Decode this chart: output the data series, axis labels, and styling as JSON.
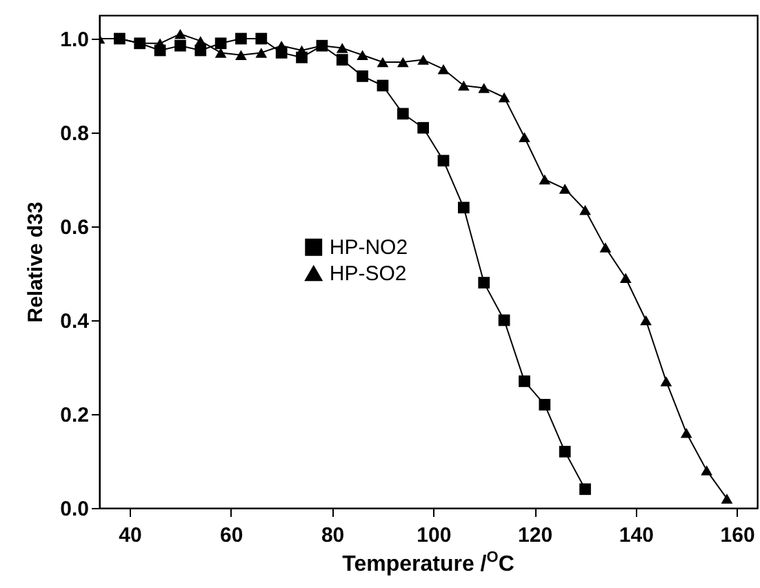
{
  "chart_data": {
    "type": "line",
    "xlabel": "Temperature /$^{O}$C",
    "ylabel": "Relative d33",
    "xlim": [
      34,
      164
    ],
    "xticks": [
      40,
      60,
      80,
      100,
      120,
      140,
      160
    ],
    "ylim": [
      0,
      1.05
    ],
    "yticks": [
      {
        "value": 0,
        "label": "0.0"
      },
      0.2,
      0.4,
      0.6,
      0.8,
      {
        "value": 1,
        "label": "1.0"
      }
    ],
    "legend": "center",
    "grid": false,
    "line_style": "solid",
    "series": [
      {
        "name": "HP-NO2",
        "color": "#000000",
        "marker": "square",
        "x": [
          38,
          42,
          46,
          50,
          54,
          58,
          62,
          66,
          70,
          74,
          78,
          82,
          86,
          90,
          94,
          98,
          102,
          106,
          110,
          114,
          118,
          122,
          126,
          130
        ],
        "values": [
          1.0,
          0.99,
          0.975,
          0.985,
          0.975,
          0.99,
          1.0,
          1.0,
          0.97,
          0.96,
          0.985,
          0.955,
          0.92,
          0.9,
          0.84,
          0.81,
          0.74,
          0.64,
          0.48,
          0.4,
          0.27,
          0.22,
          0.12,
          0.04
        ]
      },
      {
        "name": "HP-SO2",
        "color": "#000000",
        "marker": "triangle",
        "x": [
          34,
          38,
          42,
          46,
          50,
          54,
          58,
          62,
          66,
          70,
          74,
          78,
          82,
          86,
          90,
          94,
          98,
          102,
          106,
          110,
          114,
          118,
          122,
          126,
          130,
          134,
          138,
          142,
          146,
          150,
          154,
          158
        ],
        "values": [
          1.0,
          1.0,
          0.99,
          0.99,
          1.01,
          0.995,
          0.97,
          0.965,
          0.97,
          0.985,
          0.975,
          0.985,
          0.98,
          0.965,
          0.95,
          0.95,
          0.955,
          0.935,
          0.9,
          0.895,
          0.875,
          0.79,
          0.7,
          0.68,
          0.635,
          0.555,
          0.49,
          0.4,
          0.27,
          0.16,
          0.08,
          0.02
        ]
      }
    ]
  }
}
